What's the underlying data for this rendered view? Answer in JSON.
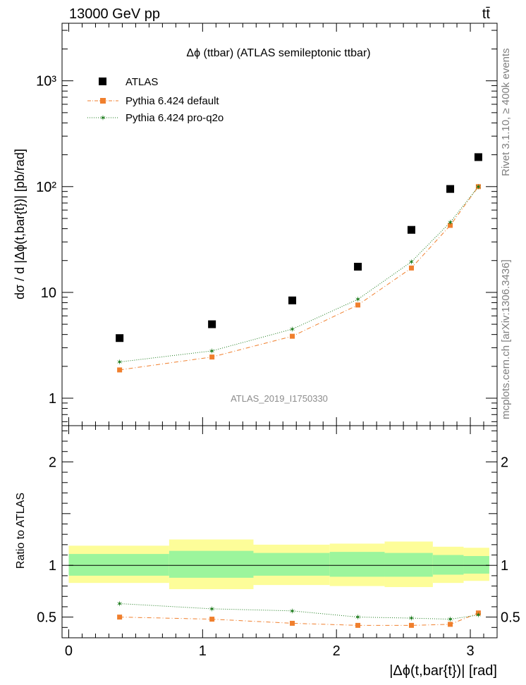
{
  "header": {
    "left": "13000 GeV pp",
    "right": "tt̄"
  },
  "side_labels": {
    "rivet": "Rivet 3.1.10, ≥ 400k events",
    "mcplots": "mcplots.cern.ch [arXiv:1306.3436]"
  },
  "chart_data": [
    {
      "type": "scatter",
      "panel": "main",
      "title": "Δϕ (ttbar) (ATLAS semileptonic ttbar)",
      "watermark": "ATLAS_2019_I1750330",
      "xlabel": "|Δϕ(t,bar{t})| [rad]",
      "ylabel": "dσ / d |Δϕ(t,bar{t})| [pb/rad]",
      "yscale": "log",
      "xlim": [
        -0.05,
        3.2
      ],
      "ylim": [
        0.55,
        3500
      ],
      "yticks": [
        {
          "value": 1,
          "label": "1"
        },
        {
          "value": 10,
          "label": "10"
        },
        {
          "value": 100,
          "label": "10²"
        },
        {
          "value": 1000,
          "label": "10³"
        }
      ],
      "x": [
        0.38,
        1.07,
        1.67,
        2.16,
        2.56,
        2.85,
        3.06
      ],
      "bin_edges": [
        0.0,
        0.75,
        1.38,
        1.95,
        2.36,
        2.72,
        2.95,
        3.1416
      ],
      "series": [
        {
          "name": "ATLAS",
          "color": "#000000",
          "values": [
            3.7,
            5.0,
            8.4,
            17.5,
            39.0,
            95.0,
            190.0
          ]
        },
        {
          "name": "Pythia 6.424 default",
          "color": "#f07f2d",
          "values": [
            1.85,
            2.45,
            3.85,
            7.6,
            17.0,
            43.0,
            100.0
          ]
        },
        {
          "name": "Pythia 6.424 pro-q2o",
          "color": "#1a7a1a",
          "values": [
            2.2,
            2.8,
            4.5,
            8.6,
            19.5,
            46.0,
            100.0
          ]
        }
      ]
    },
    {
      "type": "line",
      "panel": "ratio",
      "ylabel": "Ratio to ATLAS",
      "xlabel": "|Δϕ(t,bar{t})| [rad]",
      "xlim": [
        -0.05,
        3.2
      ],
      "ylim": [
        0.3,
        2.35
      ],
      "yticks": [
        {
          "value": 0.5,
          "label": "0.5"
        },
        {
          "value": 1,
          "label": "1"
        },
        {
          "value": 2,
          "label": "2"
        }
      ],
      "xticks": [
        {
          "value": 0,
          "label": "0"
        },
        {
          "value": 1,
          "label": "1"
        },
        {
          "value": 2,
          "label": "2"
        },
        {
          "value": 3,
          "label": "3"
        }
      ],
      "x": [
        0.38,
        1.07,
        1.67,
        2.16,
        2.56,
        2.85,
        3.06
      ],
      "bands": {
        "bin_edges": [
          0.0,
          0.75,
          1.38,
          1.95,
          2.36,
          2.72,
          2.95,
          3.1416
        ],
        "inner_color": "#9cf59c",
        "outer_color": "#fdfd99",
        "inner": [
          [
            0.9,
            1.11
          ],
          [
            0.88,
            1.14
          ],
          [
            0.9,
            1.12
          ],
          [
            0.89,
            1.13
          ],
          [
            0.89,
            1.12
          ],
          [
            0.91,
            1.1
          ],
          [
            0.92,
            1.09
          ]
        ],
        "outer": [
          [
            0.83,
            1.19
          ],
          [
            0.77,
            1.25
          ],
          [
            0.81,
            1.2
          ],
          [
            0.8,
            1.21
          ],
          [
            0.79,
            1.23
          ],
          [
            0.83,
            1.18
          ],
          [
            0.85,
            1.17
          ]
        ]
      },
      "series": [
        {
          "name": "Pythia 6.424 default",
          "color": "#f07f2d",
          "values": [
            0.5,
            0.48,
            0.44,
            0.42,
            0.42,
            0.43,
            0.54
          ]
        },
        {
          "name": "Pythia 6.424 pro-q2o",
          "color": "#1a7a1a",
          "values": [
            0.63,
            0.58,
            0.56,
            0.5,
            0.49,
            0.48,
            0.52
          ]
        }
      ]
    }
  ]
}
